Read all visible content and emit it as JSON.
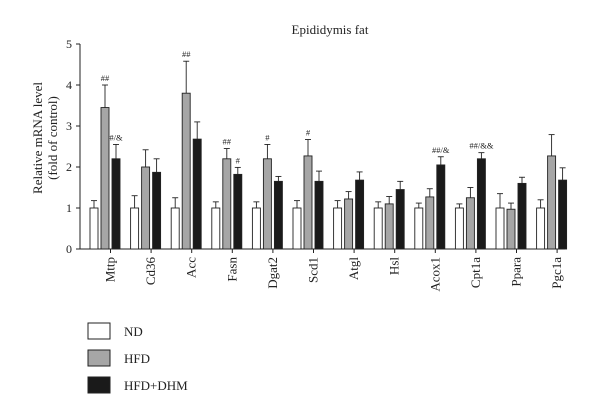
{
  "chart_data": {
    "type": "bar",
    "title": "Epididymis fat",
    "ylabel_line1": "Relative mRNA level",
    "ylabel_line2": "(fold of control)",
    "ylim": [
      0,
      5
    ],
    "yticks": [
      "0",
      "1",
      "2",
      "3",
      "4",
      "5"
    ],
    "legend_position": "bottom-left",
    "categories": [
      "Mttp",
      "Cd36",
      "Acc",
      "Fasn",
      "Dgat2",
      "Scd1",
      "Atgl",
      "Hsl",
      "Acox1",
      "Cpt1a",
      "Ppara",
      "Pgc1a"
    ],
    "series": [
      {
        "name": "ND",
        "color": "#ffffff",
        "values": [
          1.0,
          1.0,
          1.0,
          1.0,
          1.0,
          1.0,
          1.0,
          1.0,
          1.0,
          1.0,
          1.0,
          1.0
        ],
        "errors": [
          0.18,
          0.3,
          0.25,
          0.15,
          0.15,
          0.18,
          0.18,
          0.15,
          0.12,
          0.1,
          0.35,
          0.2
        ]
      },
      {
        "name": "HFD",
        "color": "#a6a6a6",
        "values": [
          3.45,
          2.0,
          3.8,
          2.2,
          2.2,
          2.27,
          1.22,
          1.1,
          1.27,
          1.25,
          0.97,
          2.27
        ],
        "errors": [
          0.55,
          0.42,
          0.78,
          0.25,
          0.35,
          0.4,
          0.18,
          0.18,
          0.2,
          0.25,
          0.15,
          0.52
        ]
      },
      {
        "name": "HFD+DHM",
        "color": "#1a1a1a",
        "values": [
          2.2,
          1.87,
          2.68,
          1.82,
          1.65,
          1.65,
          1.68,
          1.45,
          2.05,
          2.2,
          1.6,
          1.68
        ],
        "errors": [
          0.35,
          0.33,
          0.42,
          0.17,
          0.12,
          0.25,
          0.2,
          0.2,
          0.2,
          0.15,
          0.15,
          0.3
        ]
      }
    ],
    "annotations": [
      {
        "category": 0,
        "series": 1,
        "text": "##"
      },
      {
        "category": 0,
        "series": 2,
        "text": "#/&"
      },
      {
        "category": 2,
        "series": 1,
        "text": "##"
      },
      {
        "category": 3,
        "series": 1,
        "text": "##"
      },
      {
        "category": 3,
        "series": 2,
        "text": "#"
      },
      {
        "category": 4,
        "series": 1,
        "text": "#"
      },
      {
        "category": 5,
        "series": 1,
        "text": "#"
      },
      {
        "category": 8,
        "series": 2,
        "text": "##/&"
      },
      {
        "category": 9,
        "series": 2,
        "text": "##/&&"
      }
    ]
  }
}
